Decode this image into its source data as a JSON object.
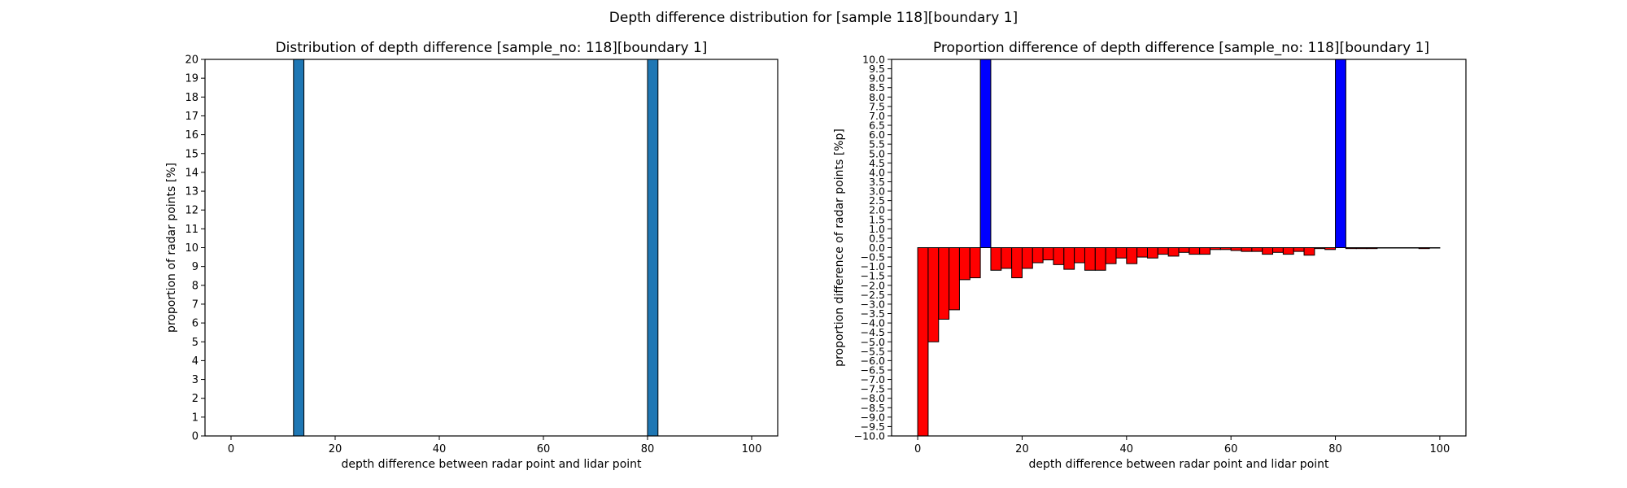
{
  "figure": {
    "suptitle": "Depth difference distribution for [sample 118][boundary 1]"
  },
  "chart_data": [
    {
      "type": "bar",
      "title": "Distribution of depth difference [sample_no: 118][boundary 1]",
      "xlabel": "depth difference between radar point and lidar point",
      "ylabel": "proportion of radar points [%]",
      "xlim": [
        -5,
        105
      ],
      "ylim": [
        0,
        20
      ],
      "xticks": [
        0,
        20,
        40,
        60,
        80,
        100
      ],
      "yticks": [
        0,
        1,
        2,
        3,
        4,
        5,
        6,
        7,
        8,
        9,
        10,
        11,
        12,
        13,
        14,
        15,
        16,
        17,
        18,
        19,
        20
      ],
      "bar_width": 2,
      "bar_color": "#1f77b4",
      "edge_color": "#000000",
      "bars": [
        {
          "x": 12,
          "value": 20
        },
        {
          "x": 80,
          "value": 20
        }
      ]
    },
    {
      "type": "bar",
      "title": "Proportion difference of depth difference [sample_no: 118][boundary 1]",
      "xlabel": "depth difference between radar point and lidar point",
      "ylabel": "proportion difference of radar points [%p]",
      "xlim": [
        -5,
        105
      ],
      "ylim": [
        -10,
        10
      ],
      "xticks": [
        0,
        20,
        40,
        60,
        80,
        100
      ],
      "yticks": [
        -10,
        -9.5,
        -9,
        -8.5,
        -8,
        -7.5,
        -7,
        -6.5,
        -6,
        -5.5,
        -5,
        -4.5,
        -4,
        -3.5,
        -3,
        -2.5,
        -2,
        -1.5,
        -1,
        -0.5,
        0,
        0.5,
        1,
        1.5,
        2,
        2.5,
        3,
        3.5,
        4,
        4.5,
        5,
        5.5,
        6,
        6.5,
        7,
        7.5,
        8,
        8.5,
        9,
        9.5,
        10
      ],
      "bar_width": 2,
      "positive_color": "#0000ff",
      "negative_color": "#ff0000",
      "edge_color": "#000000",
      "bars": [
        {
          "x": 0,
          "value": -10
        },
        {
          "x": 2,
          "value": -5.0
        },
        {
          "x": 4,
          "value": -3.8
        },
        {
          "x": 6,
          "value": -3.3
        },
        {
          "x": 8,
          "value": -1.7
        },
        {
          "x": 10,
          "value": -1.6
        },
        {
          "x": 12,
          "value": 10
        },
        {
          "x": 14,
          "value": -1.2
        },
        {
          "x": 16,
          "value": -1.1
        },
        {
          "x": 18,
          "value": -1.6
        },
        {
          "x": 20,
          "value": -1.1
        },
        {
          "x": 22,
          "value": -0.8
        },
        {
          "x": 24,
          "value": -0.65
        },
        {
          "x": 26,
          "value": -0.9
        },
        {
          "x": 28,
          "value": -1.15
        },
        {
          "x": 30,
          "value": -0.8
        },
        {
          "x": 32,
          "value": -1.2
        },
        {
          "x": 34,
          "value": -1.2
        },
        {
          "x": 36,
          "value": -0.85
        },
        {
          "x": 38,
          "value": -0.55
        },
        {
          "x": 40,
          "value": -0.85
        },
        {
          "x": 42,
          "value": -0.5
        },
        {
          "x": 44,
          "value": -0.55
        },
        {
          "x": 46,
          "value": -0.35
        },
        {
          "x": 48,
          "value": -0.45
        },
        {
          "x": 50,
          "value": -0.25
        },
        {
          "x": 52,
          "value": -0.35
        },
        {
          "x": 54,
          "value": -0.35
        },
        {
          "x": 56,
          "value": -0.1
        },
        {
          "x": 58,
          "value": -0.1
        },
        {
          "x": 60,
          "value": -0.15
        },
        {
          "x": 62,
          "value": -0.2
        },
        {
          "x": 64,
          "value": -0.2
        },
        {
          "x": 66,
          "value": -0.35
        },
        {
          "x": 68,
          "value": -0.25
        },
        {
          "x": 70,
          "value": -0.35
        },
        {
          "x": 72,
          "value": -0.2
        },
        {
          "x": 74,
          "value": -0.4
        },
        {
          "x": 76,
          "value": -0.05
        },
        {
          "x": 78,
          "value": -0.1
        },
        {
          "x": 80,
          "value": 10
        },
        {
          "x": 82,
          "value": -0.05
        },
        {
          "x": 84,
          "value": -0.05
        },
        {
          "x": 86,
          "value": -0.05
        },
        {
          "x": 88,
          "value": -0.02
        },
        {
          "x": 90,
          "value": -0.02
        },
        {
          "x": 92,
          "value": -0.02
        },
        {
          "x": 94,
          "value": -0.02
        },
        {
          "x": 96,
          "value": -0.05
        },
        {
          "x": 98,
          "value": -0.02
        }
      ]
    }
  ]
}
